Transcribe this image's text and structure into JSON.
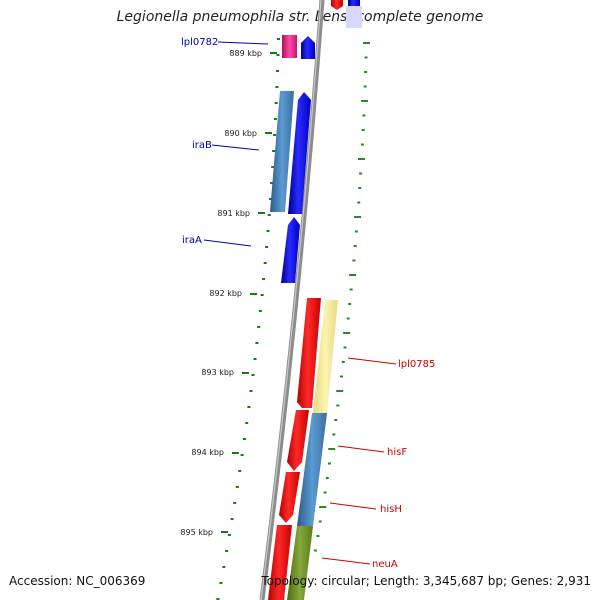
{
  "title": "Legionella pneumophila str. Lens, complete genome",
  "accession": "Accession: NC_006369",
  "summary": "Topology: circular; Length: 3,345,687 bp; Genes: 2,931",
  "ticks": [
    "889 kbp",
    "890 kbp",
    "891 kbp",
    "892 kbp",
    "893 kbp",
    "894 kbp",
    "895 kbp"
  ],
  "genes_left": [
    {
      "name": "lpl0782",
      "color": "#0000aa"
    },
    {
      "name": "iraB",
      "color": "#0000aa"
    },
    {
      "name": "iraA",
      "color": "#0000aa"
    }
  ],
  "genes_right": [
    {
      "name": "lpl0785",
      "color": "#cc0000"
    },
    {
      "name": "hisF",
      "color": "#cc0000"
    },
    {
      "name": "hisH",
      "color": "#cc0000"
    },
    {
      "name": "neuA",
      "color": "#cc0000"
    }
  ],
  "colors": {
    "backbone": "#8c8c8c",
    "tick_green": "#1a7a1a",
    "forward_blue": "#0000ee",
    "reverse_red": "#ee0000",
    "steel_blue": "#4682b4",
    "pale_yellow": "#f0e68c",
    "olive": "#6b8e23",
    "magenta": "#e0187a"
  }
}
